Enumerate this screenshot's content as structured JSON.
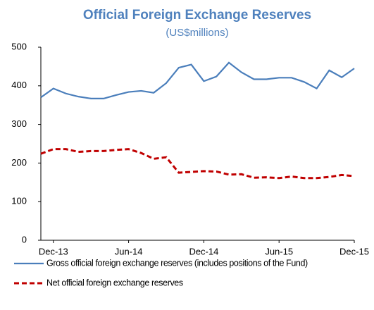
{
  "chart_data": {
    "type": "line",
    "title": "Official Foreign Exchange Reserves",
    "subtitle": "(US$millions)",
    "categories": [
      null,
      "Dec-13",
      null,
      null,
      null,
      null,
      null,
      "Jun-14",
      null,
      null,
      null,
      null,
      null,
      "Dec-14",
      null,
      null,
      null,
      null,
      null,
      "Jun-15",
      null,
      null,
      null,
      null,
      null,
      "Dec-15"
    ],
    "series": [
      {
        "name": "Gross official foreign exchange reserves (includes positions of the Fund)",
        "color": "#4a7ebb",
        "dash": "solid",
        "values": [
          370,
          393,
          380,
          372,
          367,
          367,
          376,
          384,
          387,
          382,
          407,
          447,
          455,
          412,
          424,
          460,
          435,
          417,
          417,
          421,
          421,
          410,
          393,
          440,
          422,
          445
        ]
      },
      {
        "name": "Net official foreign exchange reserves",
        "color": "#c00000",
        "dash": "dashed",
        "values": [
          224,
          236,
          236,
          229,
          231,
          231,
          234,
          236,
          226,
          211,
          215,
          175,
          177,
          179,
          178,
          170,
          171,
          162,
          163,
          161,
          165,
          161,
          161,
          164,
          169,
          166
        ]
      }
    ],
    "ylim": [
      0,
      500
    ],
    "yticks": [
      0,
      100,
      200,
      300,
      400,
      500
    ],
    "grid": false
  }
}
